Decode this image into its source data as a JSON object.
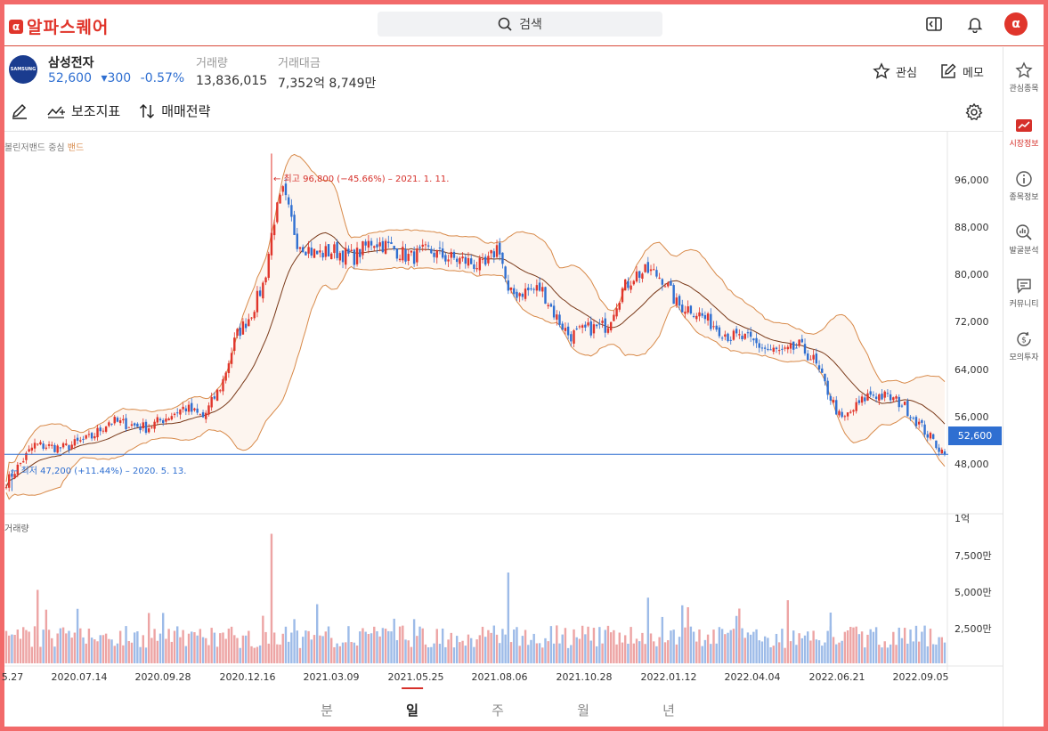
{
  "app": {
    "brand": "알파스퀘어",
    "logo_letter": "α",
    "search_placeholder": "검색",
    "brand_color": "#e0352b"
  },
  "stock": {
    "logo_text": "SAMSUNG",
    "name": "삼성전자",
    "price": "52,600",
    "change": "▾300",
    "change_pct": "-0.57%",
    "volume_label": "거래량",
    "volume": "13,836,015",
    "value_label": "거래대금",
    "value": "7,352억 8,749만",
    "watch_label": "관심",
    "memo_label": "메모"
  },
  "toolbar": {
    "indicators": "보조지표",
    "strategy": "매매전략"
  },
  "sidebar": [
    {
      "label": "관심종목",
      "icon": "star-icon"
    },
    {
      "label": "시장정보",
      "icon": "market-chart-icon",
      "active": true
    },
    {
      "label": "종목정보",
      "icon": "info-icon"
    },
    {
      "label": "발굴분석",
      "icon": "magnifier-chart-icon"
    },
    {
      "label": "커뮤니티",
      "icon": "chat-icon"
    },
    {
      "label": "모의투자",
      "icon": "coin-icon"
    }
  ],
  "chart_data": {
    "type": "candlestick",
    "indicator": {
      "name": "볼린저밴드",
      "center": "중심",
      "band": "밴드"
    },
    "volume_label": "거래량",
    "y_ticks": [
      "96,000",
      "88,000",
      "80,000",
      "72,000",
      "64,000",
      "56,000",
      "48,000"
    ],
    "ylim": [
      44000,
      100000
    ],
    "volume_ticks": [
      "1억",
      "7,500만",
      "5,000만",
      "2,500만"
    ],
    "x_ticks": [
      "5.27",
      "2020.07.14",
      "2020.09.28",
      "2020.12.16",
      "2021.03.09",
      "2021.05.25",
      "2021.08.06",
      "2021.10.28",
      "2022.01.12",
      "2022.04.04",
      "2022.06.21",
      "2022.09.05"
    ],
    "current_price": "52,600",
    "high_annotation": "← 최고 96,800 (−45.66%) – 2021. 1. 11.",
    "low_annotation": "← 최저 47,200 (+11.44%) – 2020. 5. 13.",
    "close_path": [
      [
        0,
        48500
      ],
      [
        0.03,
        54000
      ],
      [
        0.06,
        53500
      ],
      [
        0.09,
        55000
      ],
      [
        0.11,
        57500
      ],
      [
        0.13,
        57000
      ],
      [
        0.15,
        56500
      ],
      [
        0.17,
        58000
      ],
      [
        0.19,
        59500
      ],
      [
        0.21,
        58000
      ],
      [
        0.23,
        63000
      ],
      [
        0.245,
        70000
      ],
      [
        0.26,
        73000
      ],
      [
        0.275,
        78000
      ],
      [
        0.285,
        87000
      ],
      [
        0.295,
        91000
      ],
      [
        0.31,
        84000
      ],
      [
        0.33,
        82000
      ],
      [
        0.35,
        82500
      ],
      [
        0.37,
        81500
      ],
      [
        0.39,
        84000
      ],
      [
        0.41,
        83000
      ],
      [
        0.43,
        81500
      ],
      [
        0.45,
        82500
      ],
      [
        0.47,
        81500
      ],
      [
        0.49,
        81000
      ],
      [
        0.51,
        80000
      ],
      [
        0.525,
        83500
      ],
      [
        0.535,
        76000
      ],
      [
        0.55,
        76500
      ],
      [
        0.57,
        77000
      ],
      [
        0.585,
        73000
      ],
      [
        0.6,
        70000
      ],
      [
        0.62,
        71000
      ],
      [
        0.64,
        71500
      ],
      [
        0.655,
        76500
      ],
      [
        0.67,
        79000
      ],
      [
        0.685,
        79500
      ],
      [
        0.7,
        78500
      ],
      [
        0.715,
        74500
      ],
      [
        0.73,
        74000
      ],
      [
        0.75,
        72000
      ],
      [
        0.77,
        70000
      ],
      [
        0.79,
        69500
      ],
      [
        0.81,
        68000
      ],
      [
        0.83,
        67500
      ],
      [
        0.845,
        68500
      ],
      [
        0.86,
        66500
      ],
      [
        0.875,
        62000
      ],
      [
        0.89,
        57500
      ],
      [
        0.905,
        59500
      ],
      [
        0.92,
        61500
      ],
      [
        0.94,
        61000
      ],
      [
        0.955,
        60000
      ],
      [
        0.97,
        57500
      ],
      [
        0.985,
        55000
      ],
      [
        1.0,
        52600
      ]
    ],
    "high": {
      "pos": 0.282,
      "value": 96800
    },
    "low": {
      "pos": 0.006,
      "value": 47200
    },
    "colors": {
      "up": "#e0352b",
      "down": "#2f6fd1",
      "band": "#d88a4a",
      "center": "#7a3a1a"
    }
  },
  "periods": [
    {
      "label": "분"
    },
    {
      "label": "일",
      "active": true
    },
    {
      "label": "주"
    },
    {
      "label": "월"
    },
    {
      "label": "년"
    }
  ]
}
